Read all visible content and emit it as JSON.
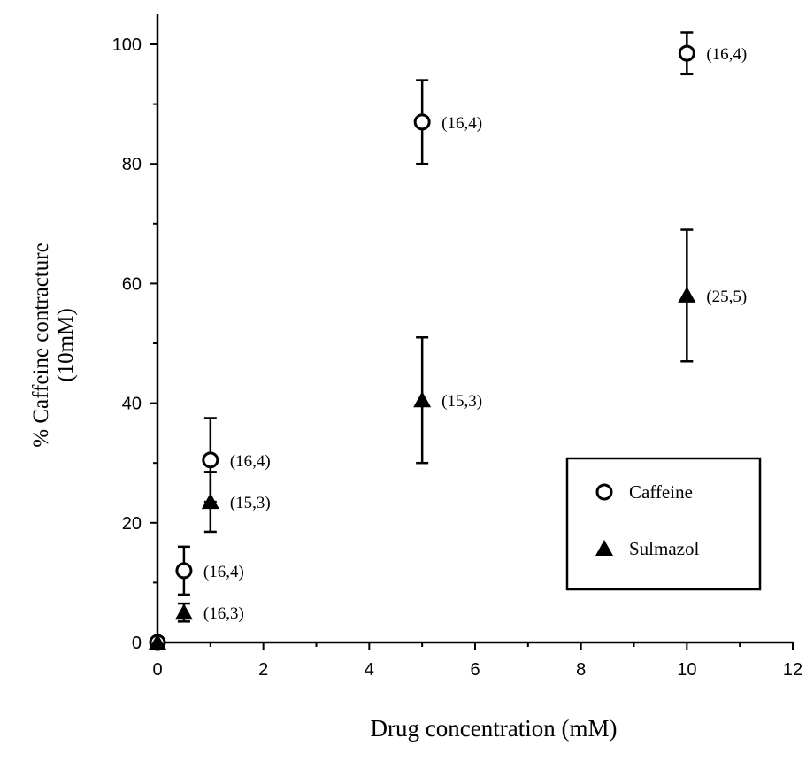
{
  "chart_data": {
    "type": "scatter",
    "xlabel": "Drug concentration (mM)",
    "ylabel_lines": [
      "% Caffeine contracture",
      "(10mM)"
    ],
    "xlim": [
      0,
      12
    ],
    "ylim": [
      0,
      105
    ],
    "x_ticks": [
      0,
      2,
      4,
      6,
      8,
      10,
      12
    ],
    "y_ticks": [
      0,
      20,
      40,
      60,
      80,
      100
    ],
    "grid": false,
    "legend_position": "lower-right",
    "series": [
      {
        "name": "Caffeine",
        "marker": "open-circle",
        "points": [
          {
            "x": 0,
            "y": 0,
            "err": 0,
            "label": ""
          },
          {
            "x": 0.5,
            "y": 12,
            "err": 4,
            "label": "(16,4)"
          },
          {
            "x": 1,
            "y": 30.5,
            "err": 7,
            "label": "(16,4)"
          },
          {
            "x": 5,
            "y": 87,
            "err": 7,
            "label": "(16,4)"
          },
          {
            "x": 10,
            "y": 98.5,
            "err": 3.5,
            "label": "(16,4)"
          }
        ]
      },
      {
        "name": "Sulmazol",
        "marker": "filled-triangle",
        "points": [
          {
            "x": 0,
            "y": 0,
            "err": 0,
            "label": ""
          },
          {
            "x": 0.5,
            "y": 5,
            "err": 1.5,
            "label": "(16,3)"
          },
          {
            "x": 1,
            "y": 23.5,
            "err": 5,
            "label": "(15,3)"
          },
          {
            "x": 5,
            "y": 40.5,
            "err": 10.5,
            "label": "(15,3)"
          },
          {
            "x": 10,
            "y": 58,
            "err": 11,
            "label": "(25,5)"
          }
        ]
      }
    ]
  }
}
